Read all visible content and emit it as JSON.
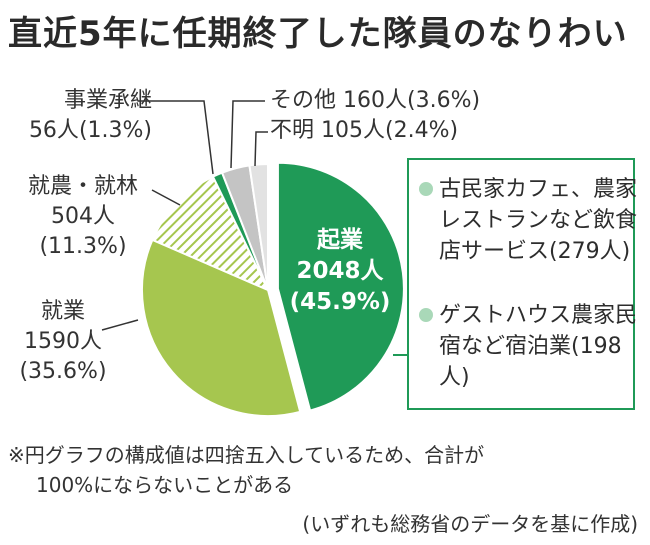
{
  "title": "直近5年に任期終了した隊員のなりわい",
  "chart_data": {
    "type": "pie",
    "slices": [
      {
        "label": "起業",
        "value_label": "2048人",
        "pct_label": "(45.9%)",
        "value": 2048,
        "pct": 45.9,
        "color": "#1f9a57"
      },
      {
        "label": "就業",
        "value_label": "1590人",
        "pct_label": "(35.6%)",
        "value": 1590,
        "pct": 35.6,
        "color": "#a6c64f"
      },
      {
        "label": "就農・就林",
        "value_label": "504人",
        "pct_label": "(11.3%)",
        "value": 504,
        "pct": 11.3,
        "color": "#a6c64f",
        "pattern": "hatch"
      },
      {
        "label": "事業承継",
        "value_label": "56人",
        "pct_label": "(1.3%)",
        "value": 56,
        "pct": 1.3,
        "color": "#1f9a57"
      },
      {
        "label": "その他",
        "value_label": "160人",
        "pct_label": "(3.6%)",
        "value": 160,
        "pct": 3.6,
        "color": "#c4c4c4"
      },
      {
        "label": "不明",
        "value_label": "105人",
        "pct_label": "(2.4%)",
        "value": 105,
        "pct": 2.4,
        "color": "#e2e2e2"
      }
    ],
    "breakdown_of": "起業",
    "breakdown": [
      {
        "label": "古民家カフェ、農家レストランなど飲食店サービス",
        "value_label": "(279人)",
        "value": 279,
        "color": "#a9d8b8"
      },
      {
        "label": "ゲストハウス農家民宿など宿泊業",
        "value_label": "(198人)",
        "value": 198,
        "color": "#a9d8b8"
      }
    ]
  },
  "note": {
    "line1": "※円グラフの構成値は四捨五入しているため、合計が",
    "line2": "100%にならないことがある"
  },
  "source": "(いずれも総務省のデータを基に作成)"
}
